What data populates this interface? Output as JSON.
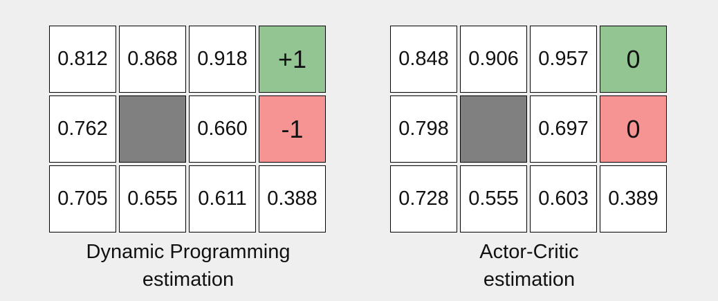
{
  "colors": {
    "background": "#efefef",
    "cell_default": "#ffffff",
    "wall": "#808080",
    "goal_positive": "#93c593",
    "goal_negative": "#f59493"
  },
  "panels": [
    {
      "caption_line1": "Dynamic Programming",
      "caption_line2": "estimation",
      "grid": [
        [
          {
            "text": "0.812"
          },
          {
            "text": "0.868"
          },
          {
            "text": "0.918"
          },
          {
            "text": "+1",
            "kind": "positive"
          }
        ],
        [
          {
            "text": "0.762"
          },
          {
            "text": "",
            "kind": "wall"
          },
          {
            "text": "0.660"
          },
          {
            "text": "-1",
            "kind": "negative"
          }
        ],
        [
          {
            "text": "0.705"
          },
          {
            "text": "0.655"
          },
          {
            "text": "0.611"
          },
          {
            "text": "0.388"
          }
        ]
      ]
    },
    {
      "caption_line1": "Actor-Critic",
      "caption_line2": "estimation",
      "grid": [
        [
          {
            "text": "0.848"
          },
          {
            "text": "0.906"
          },
          {
            "text": "0.957"
          },
          {
            "text": "0",
            "kind": "positive"
          }
        ],
        [
          {
            "text": "0.798"
          },
          {
            "text": "",
            "kind": "wall"
          },
          {
            "text": "0.697"
          },
          {
            "text": "0",
            "kind": "negative"
          }
        ],
        [
          {
            "text": "0.728"
          },
          {
            "text": "0.555"
          },
          {
            "text": "0.603"
          },
          {
            "text": "0.389"
          }
        ]
      ]
    }
  ]
}
